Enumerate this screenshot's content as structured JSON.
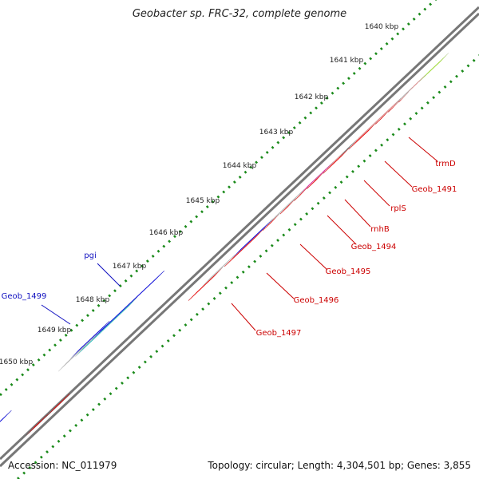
{
  "title": "Geobacter sp. FRC-32, complete genome",
  "footer": {
    "accession": "Accession: NC_011979",
    "summary": "Topology: circular; Length: 4,304,501 bp; Genes: 3,855"
  },
  "ticks": [
    "1640 kbp",
    "1641 kbp",
    "1642 kbp",
    "1643 kbp",
    "1644 kbp",
    "1645 kbp",
    "1646 kbp",
    "1647 kbp",
    "1648 kbp",
    "1649 kbp",
    "1650 kbp"
  ],
  "gene_labels_forward": [
    "pgi",
    "Geob_1499"
  ],
  "gene_labels_reverse": [
    "trmD",
    "Geob_1491",
    "rplS",
    "rnhB",
    "Geob_1494",
    "Geob_1495",
    "Geob_1496",
    "Geob_1497"
  ],
  "colors": {
    "cds": "#ff0000",
    "blue": "#0000ee",
    "cyan": "#20c8c8",
    "gray": "#bbbbbb",
    "pink": "#f08c8c",
    "magenta": "#ee20a8",
    "darkgray": "#555555",
    "lime": "#a8f030",
    "forward_label": "#1010c0",
    "reverse_label": "#cc0000"
  }
}
